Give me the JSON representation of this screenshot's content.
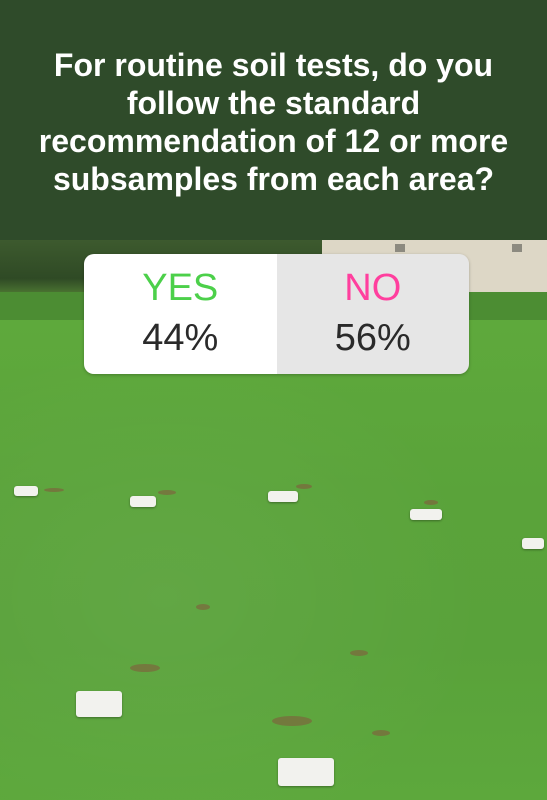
{
  "story": {
    "question": "For routine soil tests, do you follow the standard recommendation of 12 or more subsamples from each area?"
  },
  "poll": {
    "options": [
      {
        "label": "YES",
        "percent": "44%",
        "color": "#4cd04a"
      },
      {
        "label": "NO",
        "percent": "56%",
        "color": "#ff3f9e"
      }
    ]
  }
}
